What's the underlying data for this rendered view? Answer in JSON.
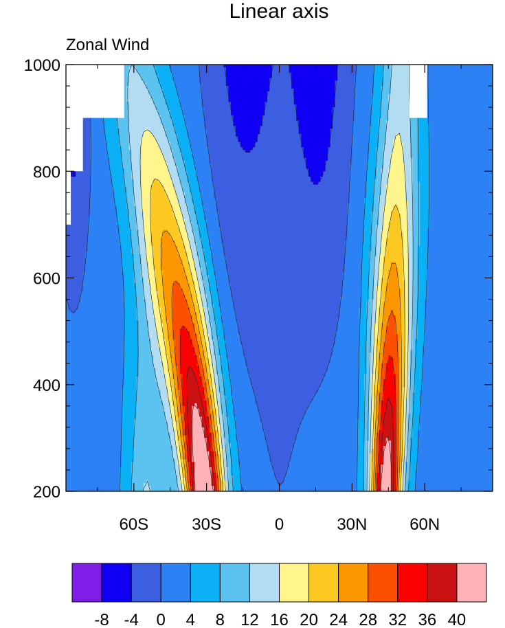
{
  "chart_data": {
    "type": "contour",
    "title": "Linear axis",
    "subtitle": "Zonal Wind",
    "x_tick_labels": [
      "60S",
      "30S",
      "0",
      "30N",
      "60N"
    ],
    "x_tick_values": [
      -60,
      -30,
      0,
      30,
      60
    ],
    "xlim": [
      -88,
      88
    ],
    "y_tick_labels": [
      "1000",
      "800",
      "600",
      "400",
      "200"
    ],
    "y_tick_values": [
      1000,
      800,
      600,
      400,
      200
    ],
    "ylim": [
      1000,
      200
    ],
    "colorbar_labels": [
      "-8",
      "-4",
      "0",
      "4",
      "8",
      "12",
      "16",
      "20",
      "24",
      "28",
      "32",
      "36",
      "40"
    ],
    "levels": [
      -8,
      -4,
      0,
      4,
      8,
      12,
      16,
      20,
      24,
      28,
      32,
      36,
      40
    ],
    "colors": [
      "#7f1ee6",
      "#0f00f5",
      "#3c5ee0",
      "#2c82f5",
      "#0bb0f5",
      "#5cc3f0",
      "#b2dcf2",
      "#fef58d",
      "#fcc923",
      "#fc9700",
      "#fc5000",
      "#fa0000",
      "#ca1212",
      "#fdb2b8"
    ],
    "missing_color": "#ffffff",
    "contour_color": "#222222",
    "notes": "Filled contours of zonal-mean zonal wind (m/s) vs latitude and pressure; two jet maxima near 30S and 45N peaking near 200 hPa."
  }
}
